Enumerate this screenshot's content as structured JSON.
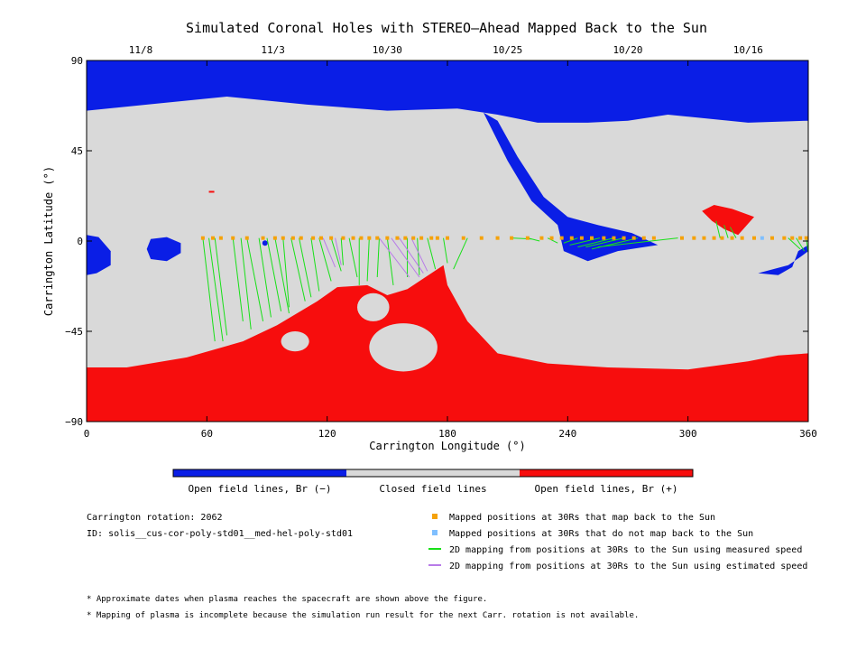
{
  "chart_data": {
    "type": "map",
    "title": "Simulated Coronal Holes with STEREO–Ahead Mapped Back to the Sun",
    "xlabel": "Carrington Longitude (°)",
    "ylabel": "Carrington Latitude (°)",
    "xlim": [
      0,
      360
    ],
    "ylim": [
      -90,
      90
    ],
    "x_ticks": [
      0,
      60,
      120,
      180,
      240,
      300,
      360
    ],
    "y_ticks": [
      90,
      45,
      0,
      -45,
      -90
    ],
    "y_tick_labels": [
      "90",
      "45",
      "0",
      "−45",
      "−90"
    ],
    "top_axis": [
      {
        "lon": 27,
        "label": "11/8"
      },
      {
        "lon": 93,
        "label": "11/3"
      },
      {
        "lon": 150,
        "label": "10/30"
      },
      {
        "lon": 210,
        "label": "10/25"
      },
      {
        "lon": 270,
        "label": "10/20"
      },
      {
        "lon": 330,
        "label": "10/16"
      }
    ],
    "colors": {
      "open_negative": "#0a1ee6",
      "closed": "#d9d9d9",
      "open_positive": "#f70d0d",
      "mapped": "#f5a20a",
      "not_mapped": "#7fbfff",
      "measured_speed": "#18e018",
      "estimated_speed": "#b87be8"
    },
    "colorbar": [
      {
        "label": "Open field lines, Br (−)",
        "color": "#0a1ee6"
      },
      {
        "label": "Closed field lines",
        "color": "#d9d9d9"
      },
      {
        "label": "Open field lines, Br (+)",
        "color": "#f70d0d"
      }
    ],
    "regions": {
      "north_polar_negative": [
        [
          0,
          90
        ],
        [
          360,
          90
        ],
        [
          360,
          60
        ],
        [
          330,
          59
        ],
        [
          290,
          63
        ],
        [
          270,
          60
        ],
        [
          250,
          59
        ],
        [
          225,
          59
        ],
        [
          205,
          63
        ],
        [
          185,
          66
        ],
        [
          150,
          65
        ],
        [
          110,
          68
        ],
        [
          70,
          72
        ],
        [
          30,
          68
        ],
        [
          0,
          65
        ]
      ],
      "negative_tongue": [
        [
          198,
          64
        ],
        [
          210,
          40
        ],
        [
          222,
          20
        ],
        [
          235,
          8
        ],
        [
          238,
          -5
        ],
        [
          250,
          -10
        ],
        [
          265,
          -5
        ],
        [
          285,
          -2
        ],
        [
          272,
          4
        ],
        [
          255,
          8
        ],
        [
          240,
          12
        ],
        [
          228,
          22
        ],
        [
          215,
          42
        ],
        [
          205,
          60
        ]
      ],
      "negative_small_west": [
        [
          0,
          3
        ],
        [
          6,
          2
        ],
        [
          12,
          -5
        ],
        [
          12,
          -12
        ],
        [
          5,
          -16
        ],
        [
          0,
          -17
        ]
      ],
      "negative_small_35": [
        [
          32,
          1
        ],
        [
          40,
          2
        ],
        [
          47,
          -1
        ],
        [
          47,
          -6
        ],
        [
          40,
          -10
        ],
        [
          32,
          -9
        ],
        [
          30,
          -4
        ]
      ],
      "negative_east_edge": [
        [
          360,
          -2
        ],
        [
          355,
          -5
        ],
        [
          352,
          -13
        ],
        [
          345,
          -17
        ],
        [
          335,
          -16
        ],
        [
          350,
          -12
        ],
        [
          356,
          -8
        ],
        [
          360,
          -5
        ]
      ],
      "south_polar_positive": [
        [
          0,
          -63
        ],
        [
          20,
          -63
        ],
        [
          50,
          -58
        ],
        [
          78,
          -50
        ],
        [
          95,
          -42
        ],
        [
          115,
          -30
        ],
        [
          125,
          -23
        ],
        [
          140,
          -22
        ],
        [
          150,
          -27
        ],
        [
          160,
          -24
        ],
        [
          178,
          -12
        ],
        [
          180,
          -22
        ],
        [
          190,
          -40
        ],
        [
          205,
          -56
        ],
        [
          230,
          -61
        ],
        [
          260,
          -63
        ],
        [
          300,
          -64
        ],
        [
          330,
          -60
        ],
        [
          345,
          -57
        ],
        [
          360,
          -56
        ],
        [
          360,
          -90
        ],
        [
          0,
          -90
        ]
      ],
      "positive_north_patch": [
        [
          307,
          15
        ],
        [
          312,
          10
        ],
        [
          318,
          6
        ],
        [
          325,
          3
        ],
        [
          333,
          12
        ],
        [
          322,
          16
        ],
        [
          313,
          18
        ]
      ],
      "positive_small_north": [
        [
          300,
          0
        ]
      ]
    },
    "holes_in_positive": [
      {
        "lon": 104,
        "lat": -50,
        "rlon": 7,
        "rlat": 5
      },
      {
        "lon": 158,
        "lat": -53,
        "rlon": 17,
        "rlat": 12
      },
      {
        "lon": 143,
        "lat": -33,
        "rlon": 8,
        "rlat": 7
      },
      {
        "lon": 84,
        "lat": -43,
        "rlon": 5,
        "rlat": 3
      }
    ],
    "mapped_lon": [
      58,
      63,
      67,
      73,
      80,
      88,
      94,
      98,
      103,
      107,
      113,
      117,
      122,
      128,
      133,
      137,
      141,
      145,
      150,
      155,
      159,
      163,
      167,
      172,
      175,
      180,
      188,
      197,
      205,
      212,
      220,
      227,
      232,
      237,
      242,
      247,
      252,
      258,
      263,
      268,
      273,
      278,
      283,
      297,
      303,
      308,
      313,
      317,
      322,
      327,
      333,
      342,
      348,
      352,
      356,
      359
    ],
    "mapped_lat": 1.5,
    "not_mapped_lon": [
      337
    ],
    "mapping_lines": [
      {
        "from": [
          58,
          1.5
        ],
        "to": [
          64,
          -50
        ],
        "kind": "measured"
      },
      {
        "from": [
          61,
          1.5
        ],
        "to": [
          68,
          -50
        ],
        "kind": "measured"
      },
      {
        "from": [
          64,
          1.5
        ],
        "to": [
          70,
          -47
        ],
        "kind": "measured"
      },
      {
        "from": [
          73,
          1.5
        ],
        "to": [
          78,
          -40
        ],
        "kind": "measured"
      },
      {
        "from": [
          77,
          1.5
        ],
        "to": [
          82,
          -44
        ],
        "kind": "measured"
      },
      {
        "from": [
          80,
          1.5
        ],
        "to": [
          88,
          -40
        ],
        "kind": "measured"
      },
      {
        "from": [
          86,
          1.5
        ],
        "to": [
          92,
          -38
        ],
        "kind": "measured"
      },
      {
        "from": [
          90,
          1.5
        ],
        "to": [
          97,
          -35
        ],
        "kind": "measured"
      },
      {
        "from": [
          94,
          1.5
        ],
        "to": [
          101,
          -36
        ],
        "kind": "measured"
      },
      {
        "from": [
          98,
          1.5
        ],
        "to": [
          101,
          -33
        ],
        "kind": "measured"
      },
      {
        "from": [
          102,
          1.5
        ],
        "to": [
          109,
          -30
        ],
        "kind": "measured"
      },
      {
        "from": [
          106,
          1.5
        ],
        "to": [
          112,
          -28
        ],
        "kind": "measured"
      },
      {
        "from": [
          112,
          1.5
        ],
        "to": [
          116,
          -25
        ],
        "kind": "measured"
      },
      {
        "from": [
          116,
          1.5
        ],
        "to": [
          122,
          -20
        ],
        "kind": "measured"
      },
      {
        "from": [
          122,
          1.5
        ],
        "to": [
          127,
          -15
        ],
        "kind": "measured"
      },
      {
        "from": [
          127,
          1.5
        ],
        "to": [
          128,
          -12
        ],
        "kind": "measured"
      },
      {
        "from": [
          131,
          1.5
        ],
        "to": [
          135,
          -18
        ],
        "kind": "measured"
      },
      {
        "from": [
          136,
          1.5
        ],
        "to": [
          136,
          -22
        ],
        "kind": "measured"
      },
      {
        "from": [
          141,
          1.5
        ],
        "to": [
          140,
          -20
        ],
        "kind": "measured"
      },
      {
        "from": [
          146,
          1.5
        ],
        "to": [
          145,
          -18
        ],
        "kind": "measured"
      },
      {
        "from": [
          150,
          1.5
        ],
        "to": [
          153,
          -22
        ],
        "kind": "measured"
      },
      {
        "from": [
          160,
          1.5
        ],
        "to": [
          160,
          -18
        ],
        "kind": "measured"
      },
      {
        "from": [
          165,
          1.5
        ],
        "to": [
          166,
          -17
        ],
        "kind": "measured"
      },
      {
        "from": [
          170,
          1.5
        ],
        "to": [
          174,
          -14
        ],
        "kind": "measured"
      },
      {
        "from": [
          178,
          1.5
        ],
        "to": [
          180,
          -11
        ],
        "kind": "measured"
      },
      {
        "from": [
          190,
          1.5
        ],
        "to": [
          183,
          -14
        ],
        "kind": "measured"
      },
      {
        "from": [
          212,
          1.5
        ],
        "to": [
          222,
          1
        ],
        "kind": "measured"
      },
      {
        "from": [
          220,
          1.5
        ],
        "to": [
          226,
          0
        ],
        "kind": "measured"
      },
      {
        "from": [
          230,
          1.5
        ],
        "to": [
          235,
          -1
        ],
        "kind": "measured"
      },
      {
        "from": [
          245,
          1.5
        ],
        "to": [
          238,
          -1
        ],
        "kind": "measured"
      },
      {
        "from": [
          256,
          1.5
        ],
        "to": [
          241,
          -2
        ],
        "kind": "measured"
      },
      {
        "from": [
          263,
          1.5
        ],
        "to": [
          245,
          -3
        ],
        "kind": "measured"
      },
      {
        "from": [
          268,
          1.5
        ],
        "to": [
          249,
          -3
        ],
        "kind": "measured"
      },
      {
        "from": [
          275,
          1.5
        ],
        "to": [
          252,
          -4
        ],
        "kind": "measured"
      },
      {
        "from": [
          295,
          1.5
        ],
        "to": [
          255,
          -3
        ],
        "kind": "measured"
      },
      {
        "from": [
          316,
          1.5
        ],
        "to": [
          314,
          10
        ],
        "kind": "measured"
      },
      {
        "from": [
          320,
          1.5
        ],
        "to": [
          318,
          8
        ],
        "kind": "measured"
      },
      {
        "from": [
          324,
          1.5
        ],
        "to": [
          321,
          7
        ],
        "kind": "measured"
      },
      {
        "from": [
          350,
          1.5
        ],
        "to": [
          356,
          -4
        ],
        "kind": "measured"
      },
      {
        "from": [
          354,
          1.5
        ],
        "to": [
          358,
          -5
        ],
        "kind": "measured"
      },
      {
        "from": [
          359,
          1.5
        ],
        "to": [
          360,
          -6
        ],
        "kind": "measured"
      },
      {
        "from": [
          118,
          1.5
        ],
        "to": [
          124,
          -13
        ],
        "kind": "estimated"
      },
      {
        "from": [
          124,
          1.5
        ],
        "to": [
          127,
          -12
        ],
        "kind": "estimated"
      },
      {
        "from": [
          146,
          1.5
        ],
        "to": [
          161,
          -18
        ],
        "kind": "estimated"
      },
      {
        "from": [
          152,
          1.5
        ],
        "to": [
          166,
          -18
        ],
        "kind": "estimated"
      },
      {
        "from": [
          156,
          1.5
        ],
        "to": [
          168,
          -16
        ],
        "kind": "estimated"
      },
      {
        "from": [
          162,
          1.5
        ],
        "to": [
          170,
          -15
        ],
        "kind": "estimated"
      }
    ]
  },
  "legend": {
    "mapped": "Mapped positions at 30Rs that map back to the Sun",
    "not_mapped": "Mapped positions at 30Rs that do not map back to the Sun",
    "measured": "2D mapping from positions at 30Rs to the Sun using measured speed",
    "estimated": "2D mapping from positions at 30Rs to the Sun using estimated speed"
  },
  "info": {
    "rotation": "Carrington rotation: 2062",
    "id": "ID: solis__cus-cor-poly-std01__med-hel-poly-std01"
  },
  "notes": [
    "* Approximate dates when plasma reaches the spacecraft are shown above the figure.",
    "* Mapping of plasma is incomplete because the simulation run result for the next Carr. rotation is not available."
  ]
}
